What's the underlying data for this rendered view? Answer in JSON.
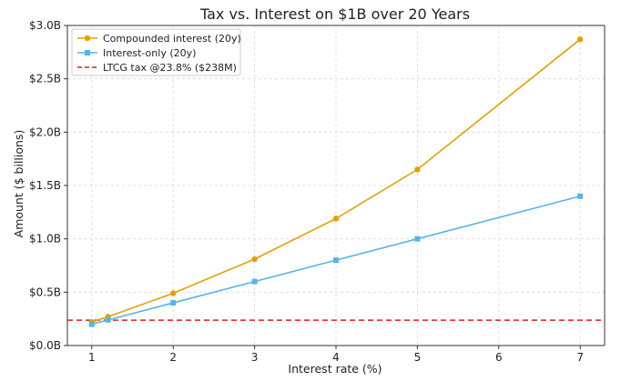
{
  "chart_data": {
    "type": "line",
    "title": "Tax vs. Interest on $1B over 20 Years",
    "xlabel": "Interest rate (%)",
    "ylabel": "Amount ($ billions)",
    "xlim": [
      0.7,
      7.3
    ],
    "ylim": [
      0,
      3.0
    ],
    "xticks": [
      1,
      2,
      3,
      4,
      5,
      6,
      7
    ],
    "xtick_labels": [
      "1",
      "2",
      "3",
      "4",
      "5",
      "6",
      "7"
    ],
    "yticks": [
      0,
      0.5,
      1.0,
      1.5,
      2.0,
      2.5,
      3.0
    ],
    "ytick_labels": [
      "$0.0B",
      "$0.5B",
      "$1.0B",
      "$1.5B",
      "$2.0B",
      "$2.5B",
      "$3.0B"
    ],
    "grid": true,
    "legend_position": "top-left",
    "series": [
      {
        "name": "Compounded interest (20y)",
        "color": "#E69F00",
        "marker": "circle",
        "x": [
          1,
          1.2,
          2,
          3,
          4,
          5,
          7
        ],
        "y": [
          0.22,
          0.27,
          0.49,
          0.81,
          1.19,
          1.65,
          2.87
        ]
      },
      {
        "name": "Interest-only (20y)",
        "color": "#56B4E9",
        "marker": "square",
        "x": [
          1,
          1.2,
          2,
          3,
          4,
          5,
          7
        ],
        "y": [
          0.2,
          0.24,
          0.4,
          0.6,
          0.8,
          1.0,
          1.4
        ]
      }
    ],
    "hlines": [
      {
        "name": "LTCG tax @23.8% ($238M)",
        "color": "#E41A1C",
        "y": 0.238,
        "style": "dashed"
      }
    ]
  }
}
